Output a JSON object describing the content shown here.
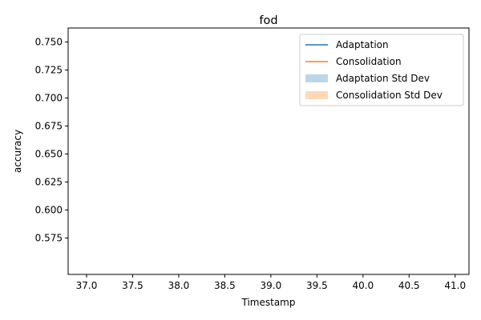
{
  "chart_data": {
    "type": "line",
    "title": "fod",
    "xlabel": "Timestamp",
    "ylabel": "accuracy",
    "xlim": [
      36.8,
      41.15
    ],
    "ylim": [
      0.5425,
      0.7625
    ],
    "x_ticks": [
      "37.0",
      "37.5",
      "38.0",
      "38.5",
      "39.0",
      "39.5",
      "40.0",
      "40.5",
      "41.0"
    ],
    "y_ticks": [
      "0.575",
      "0.600",
      "0.625",
      "0.650",
      "0.675",
      "0.700",
      "0.725",
      "0.750"
    ],
    "grid": false,
    "legend_position": "top-right",
    "series": [
      {
        "name": "Adaptation",
        "kind": "line",
        "color": "#1f77b4",
        "x": [],
        "y": []
      },
      {
        "name": "Consolidation",
        "kind": "line",
        "color": "#ff7f0e",
        "x": [],
        "y": []
      },
      {
        "name": "Adaptation Std Dev",
        "kind": "band",
        "color": "#1f77b4",
        "opacity": 0.3
      },
      {
        "name": "Consolidation Std Dev",
        "kind": "band",
        "color": "#ff7f0e",
        "opacity": 0.3
      }
    ]
  }
}
